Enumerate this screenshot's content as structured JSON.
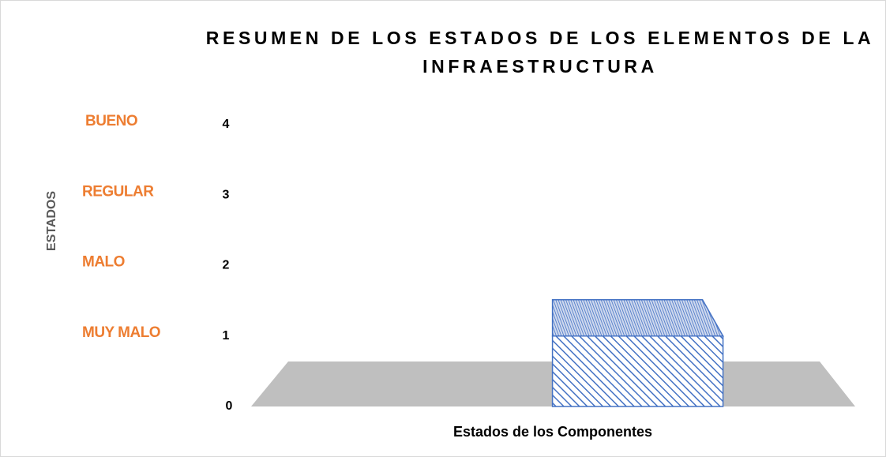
{
  "chart_data": {
    "type": "bar3d",
    "title": "RESUMEN DE LOS ESTADOS DE LOS ELEMENTOS DE LA INFRAESTRUCTURA",
    "y_label": "ESTADOS",
    "x_label": "Estados de los Componentes",
    "categories": [
      null
    ],
    "values": [
      1
    ],
    "color": "#4472c4",
    "ylim": [
      0,
      4
    ],
    "yticks": [
      0,
      1,
      2,
      3,
      4
    ],
    "state_labels": [
      {
        "label": "BUENO",
        "value": 4
      },
      {
        "label": "REGULAR",
        "value": 3
      },
      {
        "label": "MALO",
        "value": 2
      },
      {
        "label": "MUY MALO",
        "value": 1
      }
    ],
    "state_label_color": "#ed7d31"
  }
}
